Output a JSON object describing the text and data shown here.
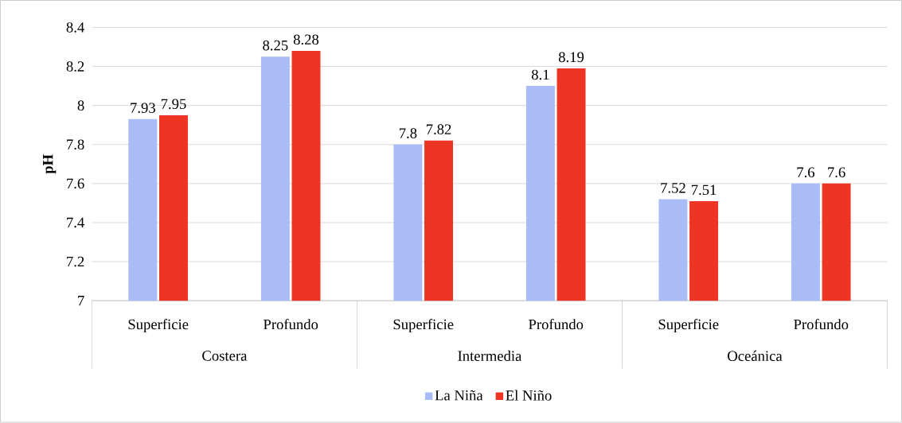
{
  "chart_data": {
    "type": "bar",
    "ylabel": "pH",
    "categories": [
      "Superficie",
      "Profundo",
      "Superficie",
      "Profundo",
      "Superficie",
      "Profundo"
    ],
    "annotations": [
      "Costera",
      "Intermedia",
      "Oceánica"
    ],
    "series": [
      {
        "name": "La Niña",
        "color": "#a9bcf5",
        "values": [
          7.93,
          8.25,
          7.8,
          8.1,
          7.52,
          7.6
        ]
      },
      {
        "name": "El Niño",
        "color": "#ee3524",
        "values": [
          7.95,
          8.28,
          7.82,
          8.19,
          7.51,
          7.6
        ]
      }
    ],
    "ylim": [
      7,
      8.4
    ],
    "yticks": [
      7,
      7.2,
      7.4,
      7.6,
      7.8,
      8,
      8.2,
      8.4
    ],
    "grid": "y",
    "legend": "bottom",
    "data_labels": true
  }
}
